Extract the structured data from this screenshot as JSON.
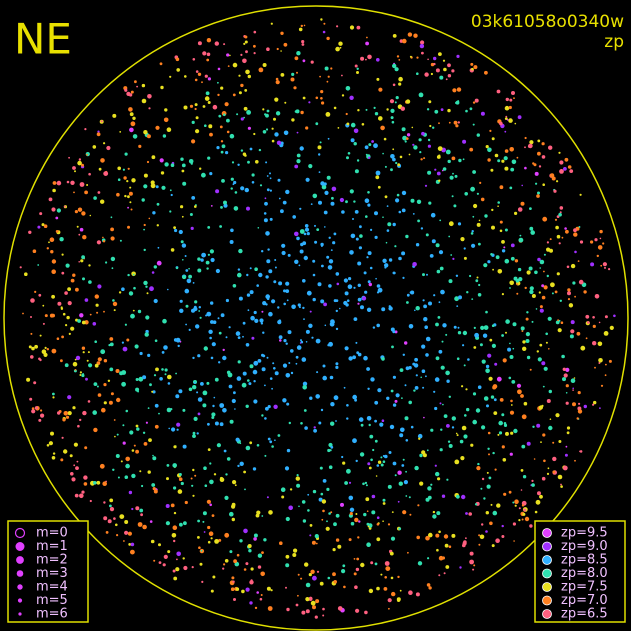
{
  "header": {
    "title": "NE",
    "image_id": "03k61058o0340w",
    "mode": "zp"
  },
  "magnitude_legend": [
    "m=0",
    "m=1",
    "m=2",
    "m=3",
    "m=4",
    "m=5",
    "m=6"
  ],
  "zp_legend": [
    {
      "label": "zp=9.5",
      "color": "#e040ff"
    },
    {
      "label": "zp=9.0",
      "color": "#a030ff"
    },
    {
      "label": "zp=8.5",
      "color": "#30b0ff"
    },
    {
      "label": "zp=8.0",
      "color": "#30e0b0"
    },
    {
      "label": "zp=7.5",
      "color": "#e8e020"
    },
    {
      "label": "zp=7.0",
      "color": "#ff8020"
    },
    {
      "label": "zp=6.5",
      "color": "#ff6080"
    }
  ]
}
